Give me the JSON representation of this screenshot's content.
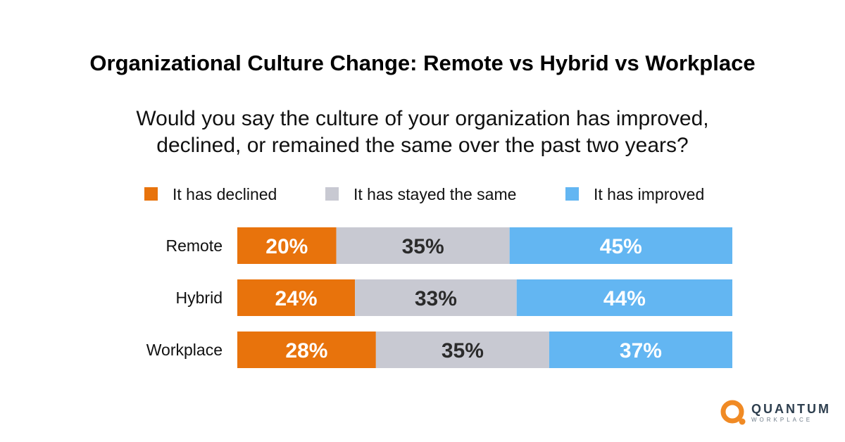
{
  "chart_data": {
    "type": "bar",
    "orientation": "horizontal-stacked-100",
    "title": "Organizational Culture Change: Remote vs Hybrid vs Workplace",
    "subtitle": [
      "Would you say the culture of your organization has improved,",
      "declined, or remained the same over the past two years?"
    ],
    "categories": [
      "Remote",
      "Hybrid",
      "Workplace"
    ],
    "series": [
      {
        "name": "It has declined",
        "color": "#e8730c",
        "values": [
          20,
          24,
          28
        ],
        "labels": [
          "20%",
          "24%",
          "28%"
        ],
        "label_color": "#ffffff"
      },
      {
        "name": "It has stayed the same",
        "color": "#c8c9d2",
        "values": [
          35,
          33,
          35
        ],
        "labels": [
          "35%",
          "33%",
          "35%"
        ],
        "label_color": "#2b2b2b"
      },
      {
        "name": "It has improved",
        "color": "#63b6f2",
        "values": [
          45,
          44,
          37
        ],
        "labels": [
          "45%",
          "44%",
          "37%"
        ],
        "label_color": "#ffffff"
      }
    ],
    "legend_position": "top",
    "grid": false
  },
  "branding": {
    "logo_main": "QUANTUM",
    "logo_sub": "WORKPLACE",
    "logo_color": "#f08a24",
    "logo_icon": "quantum-q-icon"
  }
}
